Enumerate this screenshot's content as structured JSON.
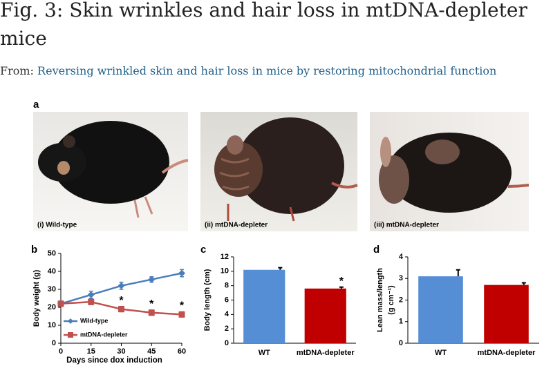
{
  "header": {
    "title": "Fig. 3: Skin wrinkles and hair loss in mtDNA-depleter mice",
    "source_prefix": "From:",
    "source_title": "Reversing wrinkled skin and hair loss in mice by restoring mitochondrial function"
  },
  "photos": {
    "panel": "a",
    "captions": [
      "(i) Wild-type",
      "(ii) mtDNA-depleter",
      "(iii) mtDNA-depleter"
    ]
  },
  "chart_data": [
    {
      "type": "line",
      "panel": "b",
      "xlabel": "Days since dox induction",
      "ylabel": "Body weight (g)",
      "x": [
        0,
        15,
        30,
        45,
        60
      ],
      "xlim": [
        0,
        60
      ],
      "xticks": [
        0,
        15,
        30,
        45,
        60
      ],
      "ylim": [
        0,
        50
      ],
      "yticks": [
        0,
        10,
        20,
        30,
        40,
        50
      ],
      "legend": "lower-left",
      "series": [
        {
          "name": "Wild-type",
          "color": "#4a7ebb",
          "marker": "diamond",
          "values": [
            22,
            27,
            32,
            35.5,
            39
          ],
          "errors": [
            1.5,
            2,
            2,
            1.5,
            2
          ]
        },
        {
          "name": "mtDNA-depleter",
          "color": "#c0504d",
          "marker": "square",
          "values": [
            22,
            23,
            19,
            17,
            16
          ],
          "errors": [
            1,
            1.5,
            1.5,
            1.5,
            1.5
          ]
        }
      ],
      "annotations": [
        {
          "text": "*",
          "series": 1,
          "index": 2
        },
        {
          "text": "*",
          "series": 1,
          "index": 3
        },
        {
          "text": "*",
          "series": 1,
          "index": 4
        }
      ]
    },
    {
      "type": "bar",
      "panel": "c",
      "ylabel": [
        "Body length  (cm)"
      ],
      "categories": [
        "WT",
        "mtDNA-depleter"
      ],
      "values": [
        10.2,
        7.6
      ],
      "errors": [
        0.3,
        0.2
      ],
      "colors": [
        "#558ed5",
        "#c00000"
      ],
      "ylim": [
        0,
        12
      ],
      "yticks": [
        0,
        2,
        4,
        6,
        8,
        10,
        12
      ],
      "annotations": [
        {
          "text": "*",
          "index": 1
        }
      ]
    },
    {
      "type": "bar",
      "panel": "d",
      "ylabel": [
        "Lean mass/length",
        "(g cm⁻¹)"
      ],
      "categories": [
        "WT",
        "mtDNA-depleter"
      ],
      "values": [
        3.1,
        2.7
      ],
      "errors": [
        0.3,
        0.1
      ],
      "colors": [
        "#558ed5",
        "#c00000"
      ],
      "ylim": [
        0,
        4
      ],
      "yticks": [
        0,
        1,
        2,
        3,
        4
      ]
    }
  ]
}
